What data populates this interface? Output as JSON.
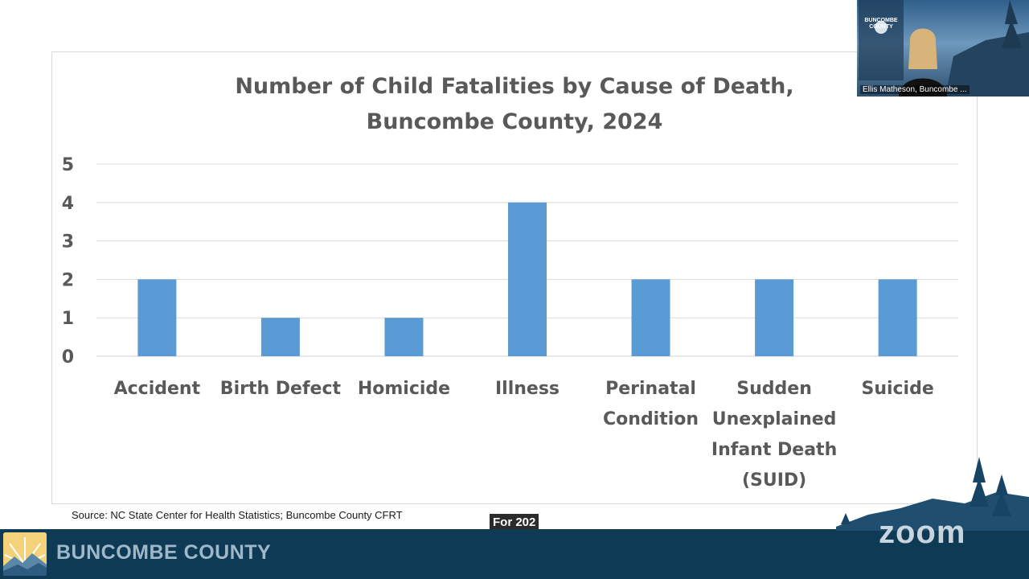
{
  "chart_data": {
    "type": "bar",
    "title": [
      "Number of Child Fatalities by Cause of Death,",
      "Buncombe County, 2024"
    ],
    "categories": [
      [
        "Accident"
      ],
      [
        "Birth Defect"
      ],
      [
        "Homicide"
      ],
      [
        "Illness"
      ],
      [
        "Perinatal",
        "Condition"
      ],
      [
        "Sudden",
        "Unexplained",
        "Infant Death",
        "(SUID)"
      ],
      [
        "Suicide"
      ]
    ],
    "values": [
      2,
      1,
      1,
      4,
      2,
      2,
      2
    ],
    "ylim": [
      0,
      5
    ],
    "yticks": [
      "0",
      "1",
      "2",
      "3",
      "4",
      "5"
    ],
    "grid": true,
    "bar_color": "#5b9bd5"
  },
  "source_note": "Source:  NC State Center for Health Statistics; Buncombe County CFRT",
  "caption_fragment": "For 202",
  "footer": {
    "org_name": "BUNCOMBE COUNTY",
    "bar_color": "#0e3a56"
  },
  "zoom_brand": "zoom",
  "video_tile": {
    "logo_text": [
      "BUNCOMBE",
      "COUNTY"
    ],
    "participant_name": "Ellis Matheson, Buncombe ..."
  }
}
